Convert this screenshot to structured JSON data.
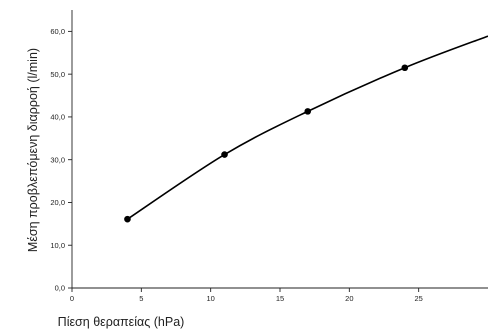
{
  "chart_data": {
    "type": "line",
    "title": "",
    "xlabel": "Πίεση θεραπείας (hPa)",
    "ylabel": "Μέση προβλεπόμενη διαρροή (l/min)",
    "xlim": [
      0,
      30
    ],
    "ylim": [
      0,
      65
    ],
    "x_ticks": [
      0,
      5,
      10,
      15,
      20,
      25
    ],
    "x_tick_labels": [
      "0",
      "5",
      "10",
      "15",
      "20",
      "25"
    ],
    "y_ticks": [
      0,
      10,
      20,
      30,
      40,
      50,
      60
    ],
    "y_tick_labels": [
      "0,0",
      "10,0",
      "20,0",
      "30,0",
      "40,0",
      "50,0",
      "60,0"
    ],
    "grid": false,
    "series": [
      {
        "x": [
          4,
          11,
          17,
          24
        ],
        "y": [
          16.1,
          31.2,
          41.3,
          51.5
        ],
        "markers": true,
        "color": "#000000"
      }
    ],
    "curve_extension": {
      "x": [
        24,
        30
      ],
      "y": [
        51.5,
        58.9
      ]
    }
  }
}
